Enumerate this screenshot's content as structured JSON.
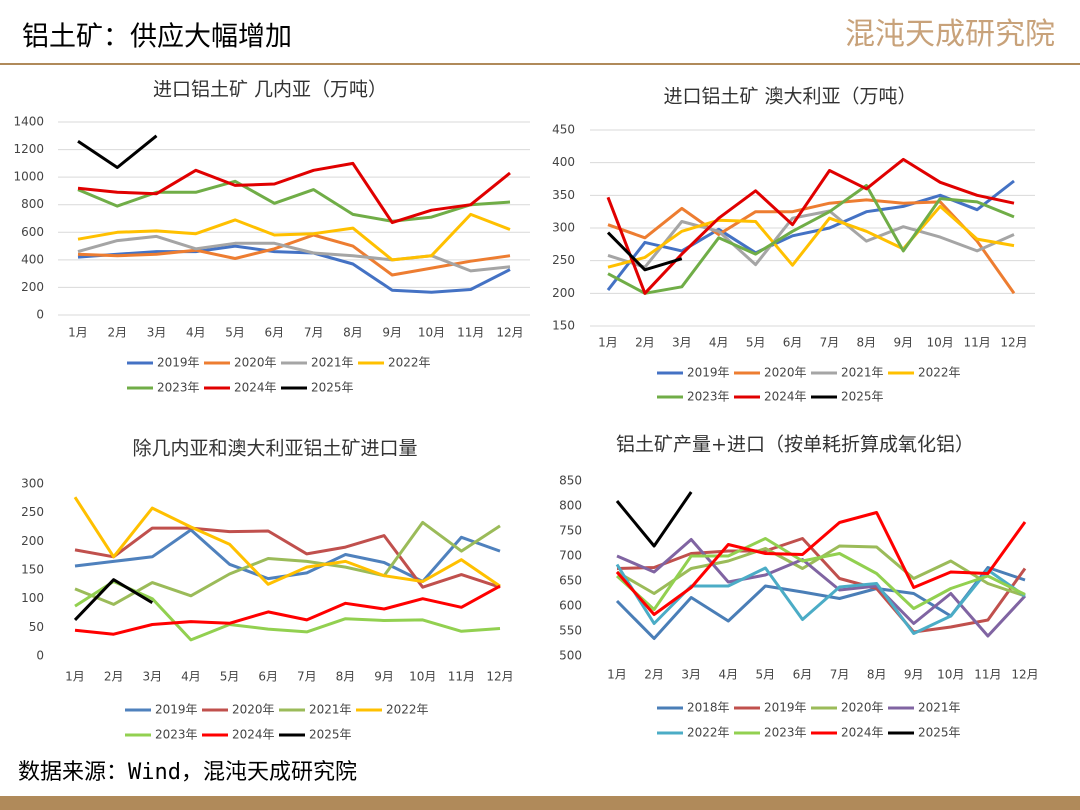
{
  "header": {
    "title": "铝土矿：供应大幅增加",
    "logo": "混沌天成研究院"
  },
  "footer": {
    "source": "数据来源：Wind，混沌天成研究院"
  },
  "chart_data": [
    {
      "type": "line",
      "title": "进口铝土矿 几内亚（万吨）",
      "categories": [
        "1月",
        "2月",
        "3月",
        "4月",
        "5月",
        "6月",
        "7月",
        "8月",
        "9月",
        "10月",
        "11月",
        "12月"
      ],
      "ylim": [
        0,
        1400
      ],
      "yticks": [
        0,
        200,
        400,
        600,
        800,
        1000,
        1200,
        1400
      ],
      "grid": true,
      "series": [
        {
          "name": "2019年",
          "color": "#4472c4",
          "values": [
            420,
            440,
            460,
            460,
            500,
            460,
            450,
            370,
            180,
            165,
            185,
            330
          ]
        },
        {
          "name": "2020年",
          "color": "#ed7d31",
          "values": [
            440,
            430,
            440,
            470,
            410,
            480,
            580,
            500,
            290,
            340,
            390,
            430
          ]
        },
        {
          "name": "2021年",
          "color": "#a5a5a5",
          "values": [
            460,
            540,
            570,
            480,
            520,
            520,
            450,
            430,
            400,
            430,
            320,
            350
          ]
        },
        {
          "name": "2022年",
          "color": "#ffc000",
          "values": [
            550,
            600,
            610,
            590,
            690,
            580,
            590,
            630,
            400,
            430,
            730,
            620
          ]
        },
        {
          "name": "2023年",
          "color": "#70ad47",
          "values": [
            910,
            790,
            890,
            890,
            970,
            810,
            910,
            730,
            680,
            710,
            800,
            820
          ]
        },
        {
          "name": "2024年",
          "color": "#e00000",
          "values": [
            920,
            890,
            880,
            1050,
            940,
            950,
            1050,
            1100,
            670,
            760,
            800,
            1030
          ]
        },
        {
          "name": "2025年",
          "color": "#000000",
          "values": [
            1260,
            1070,
            1300,
            null,
            null,
            null,
            null,
            null,
            null,
            null,
            null,
            null
          ]
        }
      ]
    },
    {
      "type": "line",
      "title": "进口铝土矿 澳大利亚（万吨）",
      "categories": [
        "1月",
        "2月",
        "3月",
        "4月",
        "5月",
        "6月",
        "7月",
        "8月",
        "9月",
        "10月",
        "11月",
        "12月"
      ],
      "ylim": [
        150,
        450
      ],
      "yticks": [
        150,
        200,
        250,
        300,
        350,
        400,
        450
      ],
      "grid": true,
      "series": [
        {
          "name": "2019年",
          "color": "#4472c4",
          "values": [
            205,
            278,
            265,
            298,
            262,
            288,
            300,
            325,
            333,
            350,
            328,
            372
          ]
        },
        {
          "name": "2020年",
          "color": "#ed7d31",
          "values": [
            305,
            285,
            330,
            290,
            325,
            325,
            338,
            343,
            338,
            340,
            280,
            200
          ]
        },
        {
          "name": "2021年",
          "color": "#a5a5a5",
          "values": [
            258,
            240,
            310,
            295,
            244,
            315,
            326,
            280,
            302,
            286,
            265,
            290
          ]
        },
        {
          "name": "2022年",
          "color": "#ffc000",
          "values": [
            240,
            255,
            295,
            312,
            310,
            243,
            315,
            295,
            268,
            333,
            283,
            273
          ]
        },
        {
          "name": "2023年",
          "color": "#70ad47",
          "values": [
            230,
            200,
            210,
            285,
            260,
            295,
            325,
            365,
            265,
            345,
            340,
            317
          ]
        },
        {
          "name": "2024年",
          "color": "#e00000",
          "values": [
            347,
            200,
            260,
            315,
            357,
            305,
            388,
            360,
            405,
            370,
            350,
            338
          ]
        },
        {
          "name": "2025年",
          "color": "#000000",
          "values": [
            293,
            236,
            253,
            null,
            null,
            null,
            null,
            null,
            null,
            null,
            null,
            null
          ]
        }
      ]
    },
    {
      "type": "line",
      "title": "除几内亚和澳大利亚铝土矿进口量",
      "categories": [
        "1月",
        "2月",
        "3月",
        "4月",
        "5月",
        "6月",
        "7月",
        "8月",
        "9月",
        "10月",
        "11月",
        "12月"
      ],
      "ylim": [
        0,
        300
      ],
      "yticks": [
        0,
        50,
        100,
        150,
        200,
        250,
        300
      ],
      "grid": false,
      "series": [
        {
          "name": "2019年",
          "color": "#4f81bd",
          "values": [
            157,
            165,
            173,
            220,
            160,
            135,
            145,
            177,
            163,
            130,
            207,
            183
          ]
        },
        {
          "name": "2020年",
          "color": "#c0504d",
          "values": [
            185,
            173,
            223,
            223,
            217,
            218,
            178,
            190,
            210,
            120,
            142,
            120
          ]
        },
        {
          "name": "2021年",
          "color": "#9bbb59",
          "values": [
            117,
            90,
            128,
            105,
            143,
            170,
            165,
            155,
            140,
            233,
            183,
            227
          ]
        },
        {
          "name": "2022年",
          "color": "#ffc000",
          "values": [
            277,
            173,
            258,
            225,
            195,
            125,
            155,
            165,
            140,
            130,
            168,
            122
          ]
        },
        {
          "name": "2023年",
          "color": "#92d050",
          "values": [
            87,
            130,
            100,
            28,
            55,
            47,
            42,
            65,
            62,
            63,
            43,
            48
          ]
        },
        {
          "name": "2024年",
          "color": "#ff0000",
          "values": [
            45,
            38,
            55,
            60,
            57,
            77,
            63,
            92,
            82,
            100,
            85,
            122
          ]
        },
        {
          "name": "2025年",
          "color": "#000000",
          "values": [
            63,
            133,
            93,
            null,
            null,
            null,
            null,
            null,
            null,
            null,
            null,
            null
          ]
        }
      ]
    },
    {
      "type": "line",
      "title": "铝土矿产量+进口（按单耗折算成氧化铝）",
      "categories": [
        "1月",
        "2月",
        "3月",
        "4月",
        "5月",
        "6月",
        "7月",
        "8月",
        "9月",
        "10月",
        "11月",
        "12月"
      ],
      "ylim": [
        500,
        850
      ],
      "yticks": [
        500,
        550,
        600,
        650,
        700,
        750,
        800,
        850
      ],
      "grid": false,
      "series": [
        {
          "name": "2018年",
          "color": "#4a7eb7",
          "values": [
            610,
            535,
            617,
            570,
            640,
            628,
            615,
            635,
            625,
            580,
            677,
            652
          ]
        },
        {
          "name": "2019年",
          "color": "#c0504d",
          "values": [
            675,
            677,
            705,
            710,
            710,
            735,
            655,
            635,
            548,
            558,
            572,
            675
          ]
        },
        {
          "name": "2020年",
          "color": "#9bbb59",
          "values": [
            668,
            625,
            675,
            690,
            715,
            675,
            720,
            718,
            655,
            690,
            645,
            620
          ]
        },
        {
          "name": "2021年",
          "color": "#8064a2",
          "values": [
            700,
            668,
            733,
            648,
            662,
            693,
            632,
            640,
            565,
            625,
            540,
            620
          ]
        },
        {
          "name": "2022年",
          "color": "#4bacc6",
          "values": [
            683,
            565,
            640,
            640,
            676,
            573,
            638,
            645,
            545,
            580,
            672,
            620
          ]
        },
        {
          "name": "2023年",
          "color": "#92d050",
          "values": [
            660,
            593,
            700,
            700,
            735,
            690,
            705,
            665,
            595,
            635,
            660,
            623
          ]
        },
        {
          "name": "2024年",
          "color": "#ff0000",
          "values": [
            668,
            583,
            637,
            723,
            705,
            703,
            767,
            787,
            637,
            668,
            665,
            768
          ]
        },
        {
          "name": "2025年",
          "color": "#000000",
          "values": [
            810,
            720,
            828,
            null,
            null,
            null,
            null,
            null,
            null,
            null,
            null,
            null
          ]
        }
      ]
    }
  ]
}
